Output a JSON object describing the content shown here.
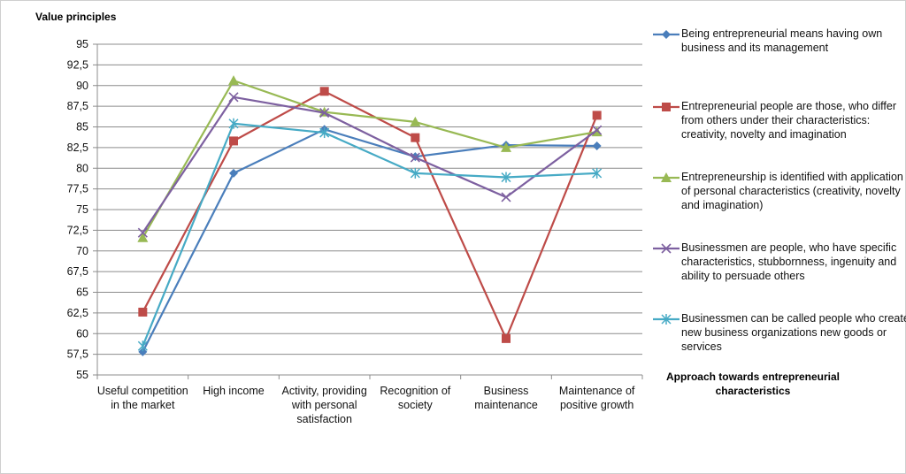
{
  "chart_data": {
    "type": "line",
    "title": "Value principles",
    "legend_title": "Approach towards entrepreneurial characteristics",
    "legend_position": "right",
    "grid": true,
    "ylim": [
      55,
      95
    ],
    "yticks": [
      "55",
      "57,5",
      "60",
      "62,5",
      "65",
      "67,5",
      "70",
      "72,5",
      "75",
      "77,5",
      "80",
      "82,5",
      "85",
      "87,5",
      "90",
      "92,5",
      "95"
    ],
    "categories": [
      "Useful competition in the market",
      "High income",
      "Activity, providing with personal satisfaction",
      "Recognition of society",
      "Business maintenance",
      "Maintenance of positive growth"
    ],
    "series": [
      {
        "name": "Being entrepreneurial means having own business and its management",
        "color": "#4a7ebb",
        "marker": "diamond",
        "values": [
          57.8,
          79.4,
          84.7,
          81.4,
          82.8,
          82.7
        ]
      },
      {
        "name": "Entrepreneurial people are those, who differ from others under their characteristics: creativity, novelty and imagination",
        "color": "#be4b48",
        "marker": "square",
        "values": [
          62.6,
          83.3,
          89.3,
          83.7,
          59.4,
          86.4
        ]
      },
      {
        "name": "Entrepreneurship is identified with application of personal characteristics (creativity, novelty and imagination)",
        "color": "#98b954",
        "marker": "triangle",
        "values": [
          71.6,
          90.6,
          86.8,
          85.6,
          82.5,
          84.4
        ]
      },
      {
        "name": "Businessmen are people, who have specific characteristics, stubbornness, ingenuity and ability to persuade others",
        "color": "#7d60a0",
        "marker": "x",
        "values": [
          72.2,
          88.6,
          86.7,
          81.3,
          76.5,
          84.6
        ]
      },
      {
        "name": "Businessmen can be called people who create new business organizations new goods or services",
        "color": "#46aac5",
        "marker": "star",
        "values": [
          58.5,
          85.4,
          84.3,
          79.4,
          78.9,
          79.4
        ]
      }
    ]
  }
}
